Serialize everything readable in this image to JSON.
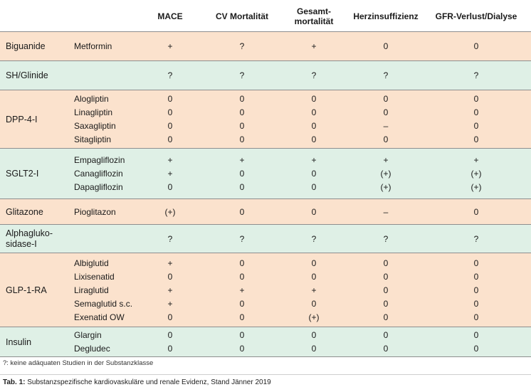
{
  "headers": [
    "MACE",
    "CV Mortalität",
    "Gesamt-\nmortalität",
    "Herzinsuffizienz",
    "GFR-Verlust/Dialyse"
  ],
  "groups": [
    {
      "label": [
        "Biguanide"
      ],
      "color": "orange",
      "rows": [
        {
          "substance": "Metformin",
          "values": [
            "+",
            "?",
            "+",
            "0",
            "0"
          ]
        }
      ]
    },
    {
      "label": [
        "SH/Glinide"
      ],
      "color": "green",
      "rows": [
        {
          "substance": "",
          "values": [
            "?",
            "?",
            "?",
            "?",
            "?"
          ]
        }
      ]
    },
    {
      "label": [
        "DPP-4-I"
      ],
      "color": "orange",
      "rows": [
        {
          "substance": "Alogliptin",
          "values": [
            "0",
            "0",
            "0",
            "0",
            "0"
          ]
        },
        {
          "substance": "Linagliptin",
          "values": [
            "0",
            "0",
            "0",
            "0",
            "0"
          ]
        },
        {
          "substance": "Saxagliptin",
          "values": [
            "0",
            "0",
            "0",
            "–",
            "0"
          ]
        },
        {
          "substance": "Sitagliptin",
          "values": [
            "0",
            "0",
            "0",
            "0",
            "0"
          ]
        }
      ]
    },
    {
      "label": [
        "SGLT2-I"
      ],
      "color": "green",
      "rows": [
        {
          "substance": "Empagliflozin",
          "values": [
            "+",
            "+",
            "+",
            "+",
            "+"
          ]
        },
        {
          "substance": "Canagliflozin",
          "values": [
            "+",
            "0",
            "0",
            "(+)",
            "(+)"
          ]
        },
        {
          "substance": "Dapagliflozin",
          "values": [
            "0",
            "0",
            "0",
            "(+)",
            "(+)"
          ]
        }
      ]
    },
    {
      "label": [
        "Glitazone"
      ],
      "color": "orange",
      "rows": [
        {
          "substance": "Pioglitazon",
          "values": [
            "(+)",
            "0",
            "0",
            "–",
            "0"
          ]
        }
      ]
    },
    {
      "label": [
        "Alphagluko-",
        "sidase-I"
      ],
      "color": "green",
      "rows": [
        {
          "substance": "",
          "values": [
            "?",
            "?",
            "?",
            "?",
            "?"
          ]
        }
      ]
    },
    {
      "label": [
        "GLP-1-RA"
      ],
      "color": "orange",
      "rows": [
        {
          "substance": "Albiglutid",
          "values": [
            "+",
            "0",
            "0",
            "0",
            "0"
          ]
        },
        {
          "substance": "Lixisenatid",
          "values": [
            "0",
            "0",
            "0",
            "0",
            "0"
          ]
        },
        {
          "substance": "Liraglutid",
          "values": [
            "+",
            "+",
            "+",
            "0",
            "0"
          ]
        },
        {
          "substance": "Semaglutid s.c.",
          "values": [
            "+",
            "0",
            "0",
            "0",
            "0"
          ]
        },
        {
          "substance": "Exenatid OW",
          "values": [
            "0",
            "0",
            "(+)",
            "0",
            "0"
          ]
        }
      ]
    },
    {
      "label": [
        "Insulin"
      ],
      "color": "green",
      "rows": [
        {
          "substance": "Glargin",
          "values": [
            "0",
            "0",
            "0",
            "0",
            "0"
          ]
        },
        {
          "substance": "Degludec",
          "values": [
            "0",
            "0",
            "0",
            "0",
            "0"
          ]
        }
      ]
    }
  ],
  "footnote": "?: keine adäquaten Studien in der Substanzklasse",
  "caption": {
    "label": "Tab. 1:",
    "text": " Substanzspezifische kardiovaskuläre und renale Evidenz, Stand Jänner 2019"
  }
}
